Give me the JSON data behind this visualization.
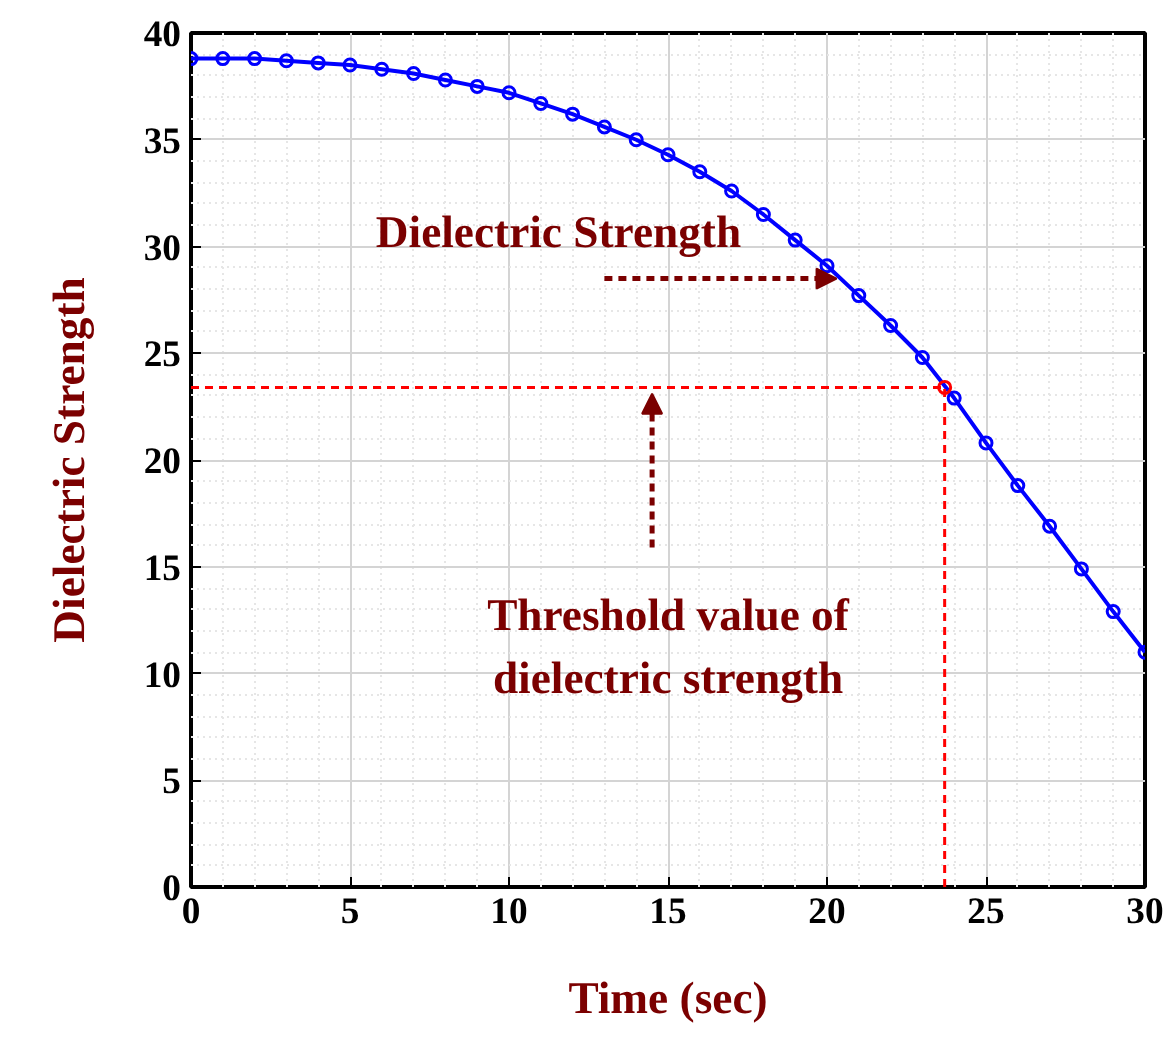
{
  "chart_data": {
    "type": "line",
    "xlabel": "Time (sec)",
    "ylabel": "Dielectric Strength",
    "x": [
      0,
      1,
      2,
      3,
      4,
      5,
      6,
      7,
      8,
      9,
      10,
      11,
      12,
      13,
      14,
      15,
      16,
      17,
      18,
      19,
      20,
      21,
      22,
      23,
      24,
      25,
      26,
      27,
      28,
      29,
      30
    ],
    "series": [
      {
        "color": "#0000ff",
        "values": [
          38.8,
          38.8,
          38.8,
          38.7,
          38.6,
          38.5,
          38.3,
          38.1,
          37.8,
          37.5,
          37.2,
          36.7,
          36.2,
          35.6,
          35.0,
          34.3,
          33.5,
          32.6,
          31.5,
          30.3,
          29.1,
          27.7,
          26.3,
          24.8,
          22.9,
          20.8,
          18.8,
          16.9,
          14.9,
          12.9,
          11.0
        ]
      },
      {
        "type": "scatter",
        "color": "#ff0000",
        "x": [
          23.7
        ],
        "values": [
          23.4
        ]
      }
    ],
    "xlim": [
      0,
      30
    ],
    "ylim": [
      0,
      40
    ],
    "xticks": [
      0,
      5,
      10,
      15,
      20,
      25,
      30
    ],
    "yticks": [
      0,
      5,
      10,
      15,
      20,
      25,
      30,
      35,
      40
    ],
    "grid": true,
    "marker": "circle",
    "line_style": "solid",
    "ref_lines": [
      {
        "axis": "y",
        "value": 23.4,
        "color": "#ff0000",
        "line_style": "dashed"
      },
      {
        "axis": "x",
        "value": 23.7,
        "color": "#ff0000",
        "line_style": "dashed"
      }
    ],
    "annotations": [
      {
        "text": "Dielectric Strength",
        "x": 20.5,
        "y": 28.5
      },
      {
        "text": "Threshold value of\ndielectric strength",
        "x": 14.5,
        "y": 23.4
      }
    ]
  }
}
